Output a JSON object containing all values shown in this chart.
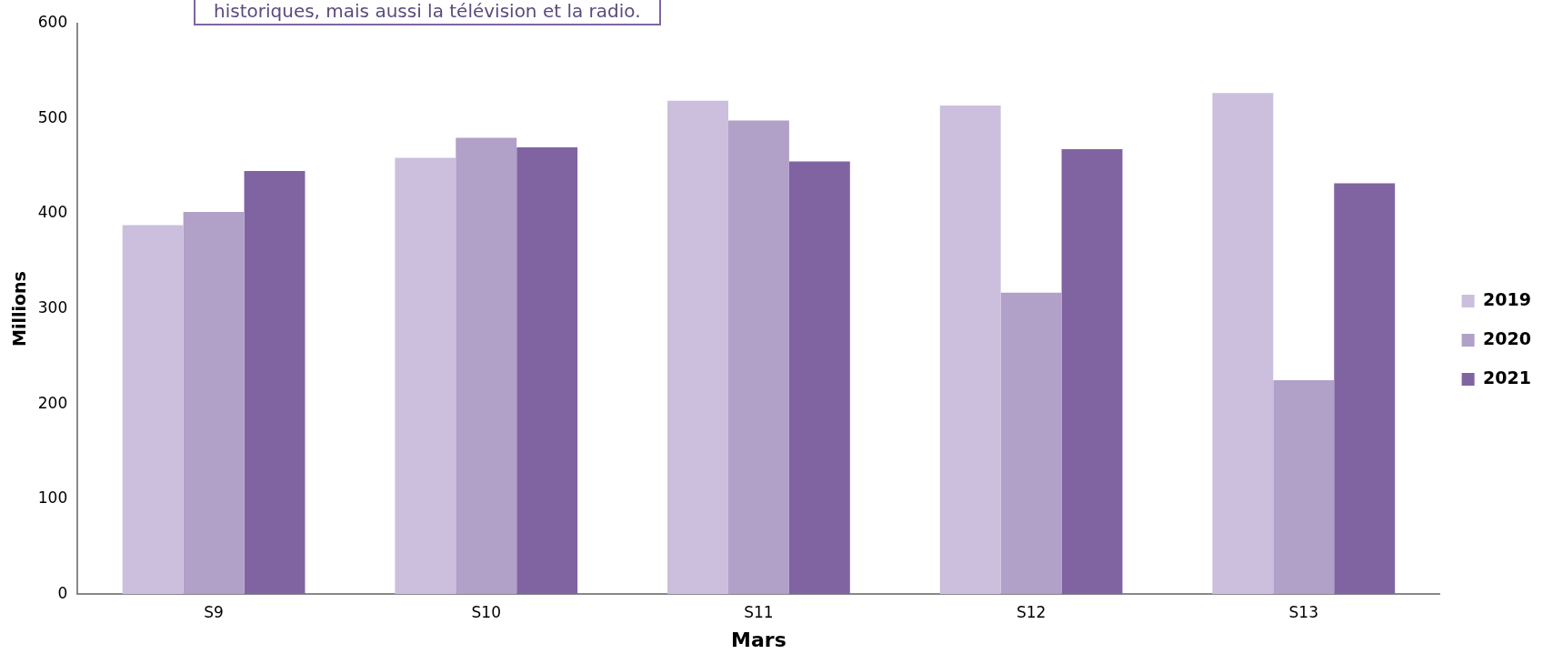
{
  "chart_data": {
    "type": "bar",
    "xlabel": "Mars",
    "ylabel": "Millions",
    "categories": [
      "S9",
      "S10",
      "S11",
      "S12",
      "S13"
    ],
    "series": [
      {
        "name": "2019",
        "color": "#cbbfdd",
        "values": [
          388,
          459,
          519,
          514,
          527
        ]
      },
      {
        "name": "2020",
        "color": "#b1a0c7",
        "values": [
          402,
          480,
          498,
          317,
          225
        ]
      },
      {
        "name": "2021",
        "color": "#8064a2",
        "values": [
          445,
          470,
          455,
          468,
          432
        ]
      }
    ],
    "ylim": [
      0,
      600
    ],
    "yticks": [
      0,
      100,
      200,
      300,
      400,
      500,
      600
    ],
    "grid": false,
    "legend": "right",
    "annotations": [
      "historiques, mais aussi la télévision et la radio."
    ]
  }
}
